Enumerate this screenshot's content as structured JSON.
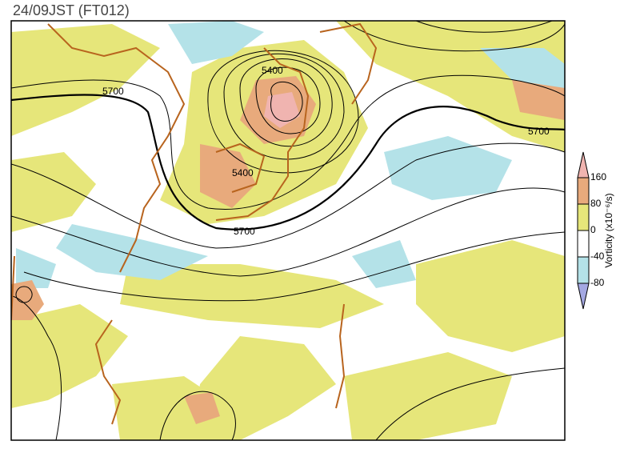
{
  "title": "24/09JST (FT012)",
  "contour_labels": [
    "5400",
    "5400",
    "5700",
    "5700",
    "5700"
  ],
  "colorbar": {
    "label": "Vorticity (x10⁻⁶/s)",
    "ticks": [
      160,
      80,
      0,
      -40,
      -80
    ],
    "colors": [
      "#f0b4b0",
      "#e8aa7c",
      "#e6e67a",
      "#ffffff",
      "#b4e2e8",
      "#a4a8e2"
    ]
  }
}
